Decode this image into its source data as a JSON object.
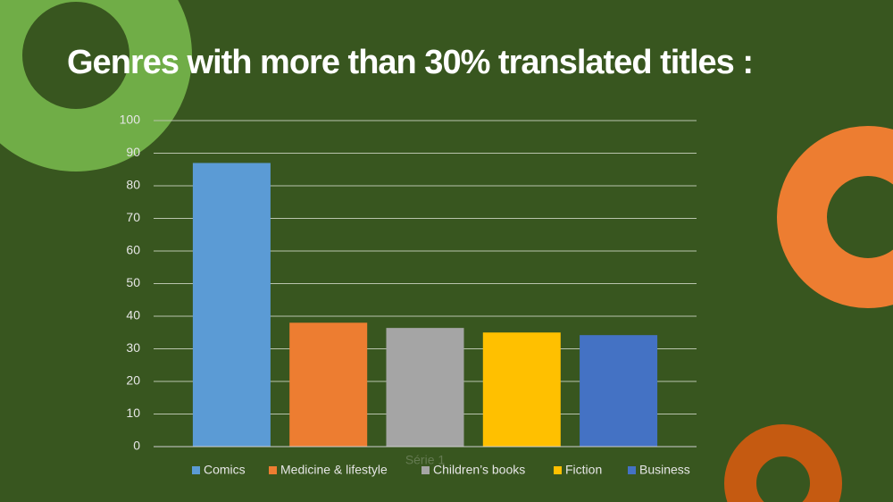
{
  "chart_data": {
    "type": "bar",
    "title": "Genres with more than 30% translated titles :",
    "categories": [
      "Série 1"
    ],
    "series": [
      {
        "name": "Comics",
        "color": "#5b9bd5",
        "values": [
          87
        ]
      },
      {
        "name": "Medicine & lifestyle",
        "color": "#ed7d31",
        "values": [
          38
        ]
      },
      {
        "name": "Children’s books",
        "color": "#a5a5a5",
        "values": [
          36.4
        ]
      },
      {
        "name": "Fiction",
        "color": "#ffc000",
        "values": [
          35
        ]
      },
      {
        "name": "Business",
        "color": "#4472c4",
        "values": [
          34.2
        ]
      }
    ],
    "ylim": [
      0,
      100
    ],
    "yticks": [
      0,
      10,
      20,
      30,
      40,
      50,
      60,
      70,
      80,
      90,
      100
    ],
    "grid": true,
    "legend": "bottom"
  }
}
